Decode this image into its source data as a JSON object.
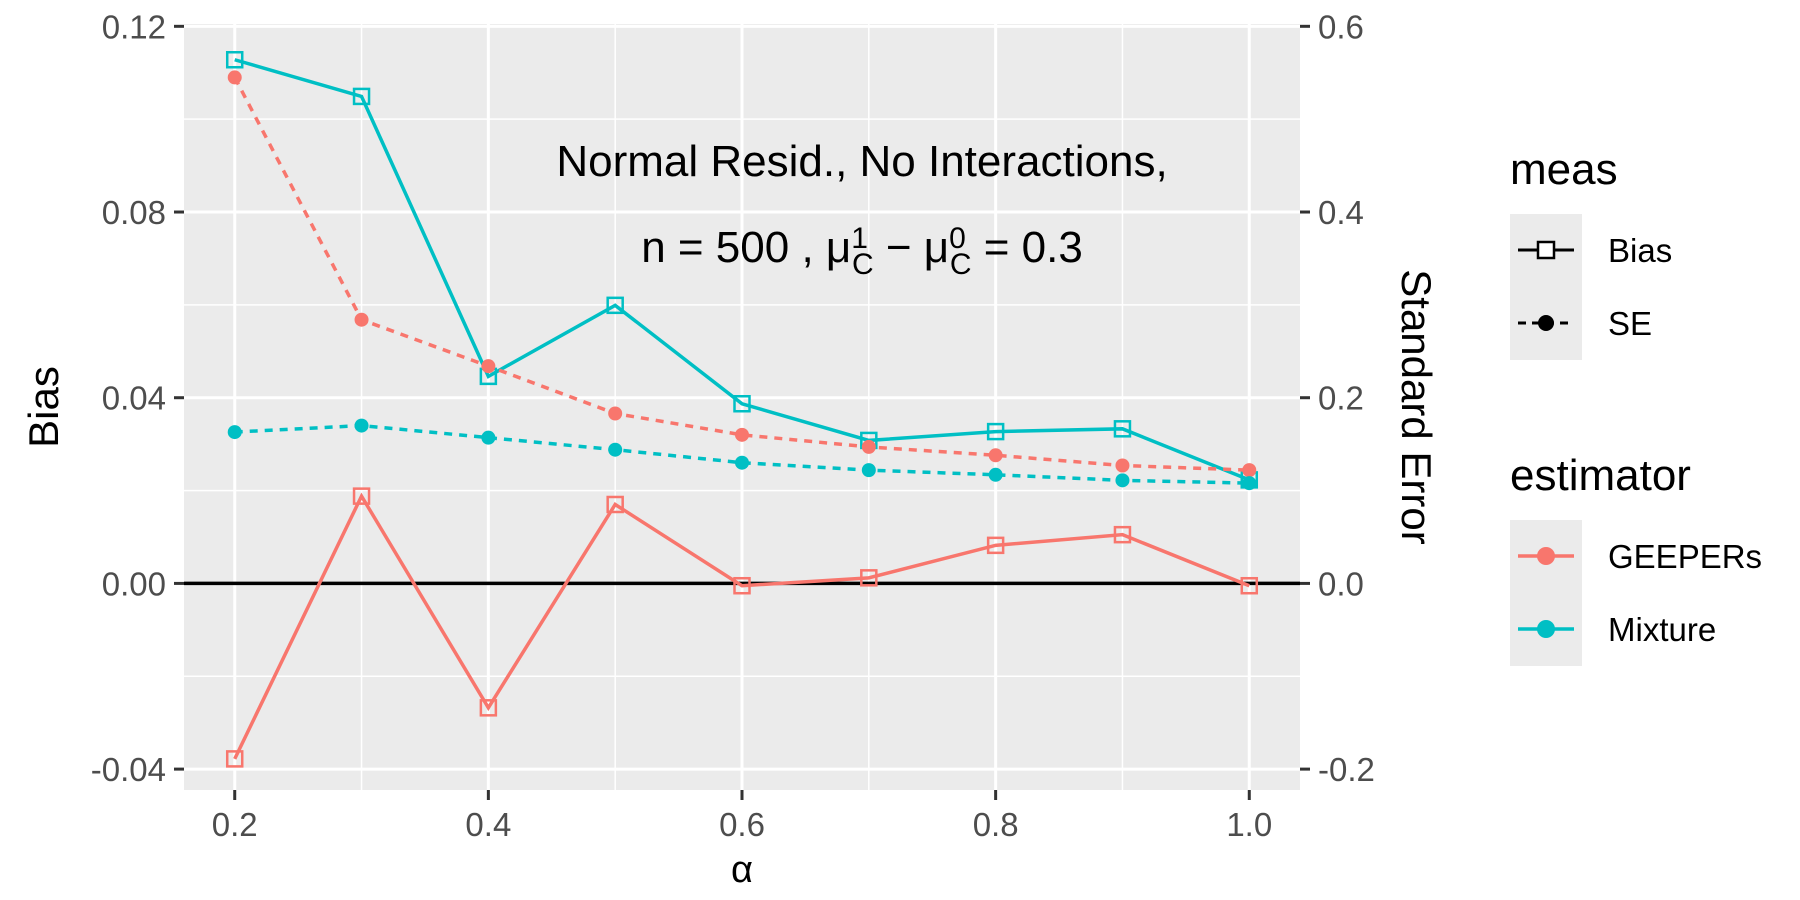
{
  "chart_data": {
    "type": "line",
    "title_line1": "Normal Resid., No Interactions,",
    "title_line2": {
      "prefix": "n = 500 ,  ",
      "mu": "μ",
      "sub": "C",
      "sup1": "1",
      "sup0": "0",
      "minus": " − ",
      "suffix": " = 0.3"
    },
    "xlabel": "α",
    "ylabel_left": "Bias",
    "ylabel_right": "Standard Error",
    "x": [
      0.2,
      0.3,
      0.4,
      0.5,
      0.6,
      0.7,
      0.8,
      0.9,
      1.0
    ],
    "x_ticks": [
      "0.2",
      "0.4",
      "0.6",
      "0.8",
      "1.0"
    ],
    "xlim": [
      0.16,
      1.04
    ],
    "ylim_left": [
      -0.0445,
      0.1205
    ],
    "yticks_left": [
      "-0.04",
      "0.00",
      "0.04",
      "0.08",
      "0.12"
    ],
    "ylim_right": [
      -0.2225,
      0.6025
    ],
    "yticks_right": [
      "-0.2",
      "0.0",
      "0.2",
      "0.4",
      "0.6"
    ],
    "zero_line": 0,
    "grid": true,
    "series": [
      {
        "estimator": "GEEPERs",
        "meas": "Bias",
        "axis": "left",
        "color": "#F8766D",
        "linestyle": "solid",
        "marker": "open-square",
        "values": [
          -0.0378,
          0.0188,
          -0.0268,
          0.017,
          -0.0005,
          0.0012,
          0.0082,
          0.0105,
          -0.0005
        ]
      },
      {
        "estimator": "Mixture",
        "meas": "Bias",
        "axis": "left",
        "color": "#00BFC4",
        "linestyle": "solid",
        "marker": "open-square",
        "values": [
          0.1128,
          0.1049,
          0.0446,
          0.0599,
          0.0387,
          0.0308,
          0.0327,
          0.0333,
          0.0223
        ]
      },
      {
        "estimator": "GEEPERs",
        "meas": "SE",
        "axis": "right",
        "color": "#F8766D",
        "linestyle": "dashed",
        "marker": "filled-circle",
        "values": [
          0.545,
          0.284,
          0.234,
          0.183,
          0.16,
          0.147,
          0.138,
          0.127,
          0.122
        ]
      },
      {
        "estimator": "Mixture",
        "meas": "SE",
        "axis": "right",
        "color": "#00BFC4",
        "linestyle": "dashed",
        "marker": "filled-circle",
        "values": [
          0.163,
          0.17,
          0.157,
          0.144,
          0.13,
          0.122,
          0.117,
          0.111,
          0.108
        ]
      }
    ],
    "legend": {
      "placement": "right",
      "meas_title": "meas",
      "meas_items": [
        "Bias",
        "SE"
      ],
      "estimator_title": "estimator",
      "estimator_items": [
        {
          "label": "GEEPERs",
          "color": "#F8766D"
        },
        {
          "label": "Mixture",
          "color": "#00BFC4"
        }
      ]
    },
    "colors": {
      "panel": "#EBEBEB",
      "grid": "#FFFFFF",
      "axis_text": "#4D4D4D",
      "zero_line": "#000000"
    }
  }
}
